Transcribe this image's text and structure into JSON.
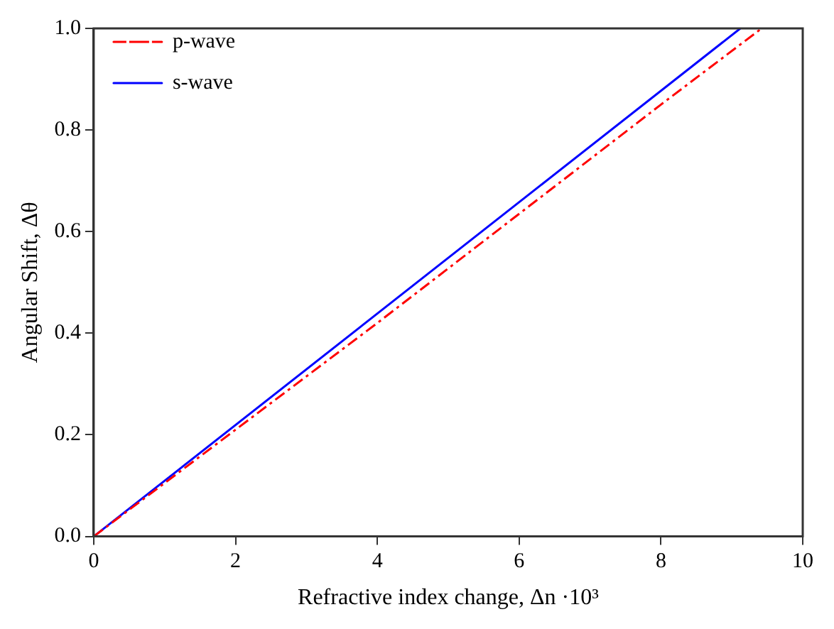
{
  "chart_data": {
    "type": "line",
    "xlabel": "Refractive index change, Δn ·10³",
    "ylabel": "Angular Shift, Δθ",
    "xlim": [
      0,
      10
    ],
    "xticks": [
      0,
      2,
      4,
      6,
      8,
      10
    ],
    "ylim": [
      0,
      1
    ],
    "yticks": [
      {
        "value": 0,
        "label": "0.0"
      },
      0.2,
      0.4,
      0.6,
      0.8,
      {
        "value": 1,
        "label": "1.0"
      }
    ],
    "series": [
      {
        "name": "p-wave",
        "color": "#ff0000",
        "line_style": "dashed",
        "x": [
          0,
          2,
          4,
          6,
          8,
          9.42
        ],
        "values": [
          0,
          0.21,
          0.42,
          0.635,
          0.85,
          1.0
        ]
      },
      {
        "name": "s-wave",
        "color": "#0000ff",
        "line_style": "solid",
        "x": [
          0,
          9.12
        ],
        "values": [
          0,
          1.0
        ]
      }
    ],
    "legend": "top left",
    "grid": false,
    "marker": "none"
  }
}
